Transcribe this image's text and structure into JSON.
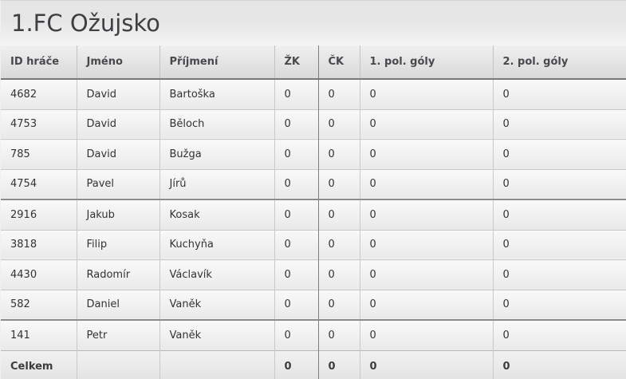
{
  "title": "1.FC Ožujsko",
  "table": {
    "columns": [
      {
        "key": "id",
        "label": "ID hráče"
      },
      {
        "key": "jmeno",
        "label": "Jméno"
      },
      {
        "key": "prijmeni",
        "label": "Příjmení"
      },
      {
        "key": "zk",
        "label": "ŽK"
      },
      {
        "key": "ck",
        "label": "ČK"
      },
      {
        "key": "g1",
        "label": "1. pol. góly"
      },
      {
        "key": "g2",
        "label": "2. pol. góly"
      }
    ],
    "rows": [
      {
        "id": "4682",
        "jmeno": "David",
        "prijmeni": "Bartoška",
        "zk": "0",
        "ck": "0",
        "g1": "0",
        "g2": "0"
      },
      {
        "id": "4753",
        "jmeno": "David",
        "prijmeni": "Běloch",
        "zk": "0",
        "ck": "0",
        "g1": "0",
        "g2": "0"
      },
      {
        "id": "785",
        "jmeno": "David",
        "prijmeni": "Bužga",
        "zk": "0",
        "ck": "0",
        "g1": "0",
        "g2": "0"
      },
      {
        "id": "4754",
        "jmeno": "Pavel",
        "prijmeni": "Jírů",
        "zk": "0",
        "ck": "0",
        "g1": "0",
        "g2": "0"
      },
      {
        "id": "2916",
        "jmeno": "Jakub",
        "prijmeni": "Kosak",
        "zk": "0",
        "ck": "0",
        "g1": "0",
        "g2": "0"
      },
      {
        "id": "3818",
        "jmeno": "Filip",
        "prijmeni": "Kuchyňa",
        "zk": "0",
        "ck": "0",
        "g1": "0",
        "g2": "0"
      },
      {
        "id": "4430",
        "jmeno": "Radomír",
        "prijmeni": "Václavík",
        "zk": "0",
        "ck": "0",
        "g1": "0",
        "g2": "0"
      },
      {
        "id": "582",
        "jmeno": "Daniel",
        "prijmeni": "Vaněk",
        "zk": "0",
        "ck": "0",
        "g1": "0",
        "g2": "0"
      },
      {
        "id": "141",
        "jmeno": "Petr",
        "prijmeni": "Vaněk",
        "zk": "0",
        "ck": "0",
        "g1": "0",
        "g2": "0"
      }
    ],
    "footer": {
      "label": "Celkem",
      "zk": "0",
      "ck": "0",
      "g1": "0",
      "g2": "0"
    }
  },
  "colors": {
    "title_text": "#3d3f42",
    "header_text": "#47494c",
    "body_text": "#333333",
    "dark_border": "#7e7e7e",
    "light_border": "#c9c9c9",
    "titlebar_bg_top": "#e6e6e6",
    "titlebar_bg_bottom": "#f4f4f4"
  }
}
